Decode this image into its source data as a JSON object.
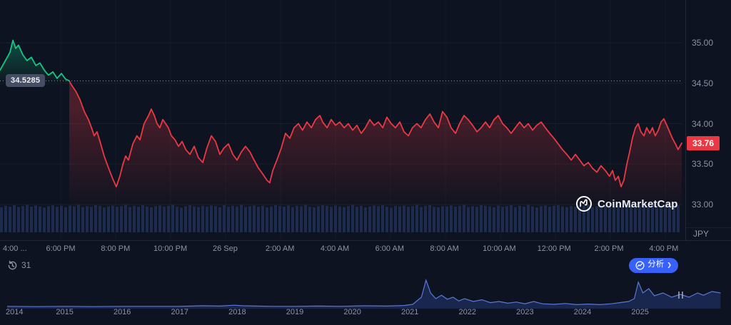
{
  "labels": {
    "open_price": "34.5285",
    "last_price": "33.76",
    "currency": "JPY"
  },
  "watermark": {
    "brand": "CoinMarketCap"
  },
  "toolbar": {
    "history_count": "31",
    "analyze_label": "分析",
    "chevron": "❯"
  },
  "colors": {
    "background": "#0d1320",
    "up": "#16c784",
    "down": "#ea3943",
    "accent_blue": "#3861fb",
    "axis_text": "#8b93a6",
    "volume_bar": "#1d2b4e",
    "timeline_line": "#5b77d4",
    "timeline_fill": "#1a2750",
    "grid": "rgba(255,255,255,0.05)"
  },
  "chart_data": [
    {
      "type": "line",
      "title": "",
      "ylabel": "JPY",
      "x_unit": "hours from chart start (~4:00 PM)",
      "x_ticks": [
        "4:00 ...",
        "6:00 PM",
        "8:00 PM",
        "10:00 PM",
        "26 Sep",
        "2:00 AM",
        "4:00 AM",
        "6:00 AM",
        "8:00 AM",
        "10:00 AM",
        "12:00 PM",
        "2:00 PM",
        "4:00 PM"
      ],
      "y_ticks": [
        "35.00",
        "34.50",
        "34.00",
        "33.50",
        "33.00"
      ],
      "y_tick_values": [
        35.0,
        34.5,
        34.0,
        33.5,
        33.0
      ],
      "ylim": [
        32.6,
        35.5
      ],
      "open_reference": 34.5285,
      "last_price": 33.76,
      "points": [
        [
          0,
          34.66
        ],
        [
          0.36,
          34.88
        ],
        [
          0.47,
          35.03
        ],
        [
          0.57,
          34.93
        ],
        [
          0.67,
          34.97
        ],
        [
          0.83,
          34.85
        ],
        [
          0.98,
          34.78
        ],
        [
          1.14,
          34.82
        ],
        [
          1.3,
          34.72
        ],
        [
          1.45,
          34.75
        ],
        [
          1.61,
          34.66
        ],
        [
          1.76,
          34.6
        ],
        [
          1.92,
          34.64
        ],
        [
          2.07,
          34.56
        ],
        [
          2.23,
          34.62
        ],
        [
          2.38,
          34.55
        ],
        [
          2.51,
          34.53
        ],
        [
          2.59,
          34.48
        ],
        [
          2.75,
          34.4
        ],
        [
          2.9,
          34.3
        ],
        [
          3.06,
          34.15
        ],
        [
          3.21,
          34.05
        ],
        [
          3.32,
          33.95
        ],
        [
          3.42,
          33.85
        ],
        [
          3.52,
          33.9
        ],
        [
          3.63,
          33.78
        ],
        [
          3.78,
          33.6
        ],
        [
          3.94,
          33.45
        ],
        [
          4.09,
          33.32
        ],
        [
          4.22,
          33.22
        ],
        [
          4.35,
          33.35
        ],
        [
          4.46,
          33.5
        ],
        [
          4.56,
          33.6
        ],
        [
          4.66,
          33.55
        ],
        [
          4.82,
          33.75
        ],
        [
          4.97,
          33.85
        ],
        [
          5.08,
          33.8
        ],
        [
          5.23,
          34.0
        ],
        [
          5.39,
          34.1
        ],
        [
          5.49,
          34.18
        ],
        [
          5.6,
          34.1
        ],
        [
          5.7,
          34.0
        ],
        [
          5.8,
          33.95
        ],
        [
          5.91,
          34.05
        ],
        [
          6.01,
          34.0
        ],
        [
          6.11,
          33.95
        ],
        [
          6.22,
          33.85
        ],
        [
          6.35,
          33.8
        ],
        [
          6.48,
          33.72
        ],
        [
          6.61,
          33.78
        ],
        [
          6.74,
          33.68
        ],
        [
          6.89,
          33.62
        ],
        [
          7.05,
          33.72
        ],
        [
          7.2,
          33.58
        ],
        [
          7.36,
          33.52
        ],
        [
          7.51,
          33.7
        ],
        [
          7.67,
          33.85
        ],
        [
          7.82,
          33.78
        ],
        [
          7.98,
          33.62
        ],
        [
          8.13,
          33.7
        ],
        [
          8.29,
          33.75
        ],
        [
          8.45,
          33.62
        ],
        [
          8.6,
          33.55
        ],
        [
          8.76,
          33.65
        ],
        [
          8.91,
          33.72
        ],
        [
          9.07,
          33.65
        ],
        [
          9.22,
          33.55
        ],
        [
          9.38,
          33.45
        ],
        [
          9.53,
          33.38
        ],
        [
          9.69,
          33.3
        ],
        [
          9.79,
          33.27
        ],
        [
          9.9,
          33.42
        ],
        [
          10.05,
          33.55
        ],
        [
          10.21,
          33.7
        ],
        [
          10.36,
          33.88
        ],
        [
          10.52,
          33.82
        ],
        [
          10.67,
          33.95
        ],
        [
          10.83,
          34.0
        ],
        [
          10.98,
          33.92
        ],
        [
          11.14,
          34.02
        ],
        [
          11.3,
          33.95
        ],
        [
          11.45,
          34.05
        ],
        [
          11.61,
          34.1
        ],
        [
          11.71,
          34.02
        ],
        [
          11.87,
          33.95
        ],
        [
          12.02,
          34.05
        ],
        [
          12.18,
          33.98
        ],
        [
          12.33,
          34.02
        ],
        [
          12.49,
          33.95
        ],
        [
          12.64,
          34.0
        ],
        [
          12.8,
          33.92
        ],
        [
          12.95,
          33.98
        ],
        [
          13.11,
          33.88
        ],
        [
          13.26,
          33.95
        ],
        [
          13.42,
          34.05
        ],
        [
          13.58,
          33.98
        ],
        [
          13.73,
          34.02
        ],
        [
          13.89,
          33.95
        ],
        [
          14.04,
          34.08
        ],
        [
          14.2,
          34.0
        ],
        [
          14.35,
          33.95
        ],
        [
          14.51,
          34.02
        ],
        [
          14.66,
          33.9
        ],
        [
          14.82,
          33.85
        ],
        [
          14.97,
          33.95
        ],
        [
          15.13,
          34.0
        ],
        [
          15.28,
          33.95
        ],
        [
          15.44,
          34.05
        ],
        [
          15.6,
          34.12
        ],
        [
          15.75,
          34.02
        ],
        [
          15.91,
          33.95
        ],
        [
          16.06,
          34.15
        ],
        [
          16.22,
          34.08
        ],
        [
          16.37,
          33.95
        ],
        [
          16.53,
          33.88
        ],
        [
          16.68,
          34.0
        ],
        [
          16.84,
          34.1
        ],
        [
          16.99,
          34.05
        ],
        [
          17.15,
          33.98
        ],
        [
          17.31,
          33.9
        ],
        [
          17.46,
          33.95
        ],
        [
          17.62,
          34.02
        ],
        [
          17.77,
          33.95
        ],
        [
          17.93,
          34.05
        ],
        [
          18.08,
          34.1
        ],
        [
          18.24,
          34.0
        ],
        [
          18.39,
          33.95
        ],
        [
          18.55,
          33.88
        ],
        [
          18.7,
          33.95
        ],
        [
          18.86,
          34.02
        ],
        [
          19.02,
          33.95
        ],
        [
          19.17,
          34.0
        ],
        [
          19.33,
          33.92
        ],
        [
          19.48,
          33.98
        ],
        [
          19.64,
          34.02
        ],
        [
          19.79,
          33.95
        ],
        [
          19.95,
          33.88
        ],
        [
          20.1,
          33.82
        ],
        [
          20.26,
          33.75
        ],
        [
          20.41,
          33.68
        ],
        [
          20.57,
          33.62
        ],
        [
          20.73,
          33.55
        ],
        [
          20.88,
          33.62
        ],
        [
          21.04,
          33.55
        ],
        [
          21.19,
          33.48
        ],
        [
          21.35,
          33.52
        ],
        [
          21.5,
          33.45
        ],
        [
          21.66,
          33.4
        ],
        [
          21.81,
          33.48
        ],
        [
          21.97,
          33.42
        ],
        [
          22.12,
          33.35
        ],
        [
          22.23,
          33.42
        ],
        [
          22.33,
          33.3
        ],
        [
          22.44,
          33.35
        ],
        [
          22.54,
          33.22
        ],
        [
          22.64,
          33.3
        ],
        [
          22.75,
          33.5
        ],
        [
          22.85,
          33.65
        ],
        [
          22.95,
          33.82
        ],
        [
          23.06,
          33.95
        ],
        [
          23.16,
          34.0
        ],
        [
          23.26,
          33.9
        ],
        [
          23.37,
          33.85
        ],
        [
          23.47,
          33.95
        ],
        [
          23.58,
          33.88
        ],
        [
          23.68,
          33.95
        ],
        [
          23.78,
          33.85
        ],
        [
          23.89,
          33.92
        ],
        [
          23.99,
          34.02
        ],
        [
          24.09,
          34.06
        ],
        [
          24.2,
          33.98
        ],
        [
          24.3,
          33.9
        ],
        [
          24.4,
          33.82
        ],
        [
          24.51,
          33.75
        ],
        [
          24.61,
          33.68
        ],
        [
          24.74,
          33.76
        ]
      ],
      "volume_norm": [
        88,
        93,
        90,
        95,
        89,
        92,
        96,
        90,
        94,
        91,
        87,
        92,
        95,
        90,
        93,
        88,
        94,
        91,
        96,
        89,
        92,
        90,
        95,
        93,
        88,
        91,
        94,
        90,
        92,
        96,
        89,
        93,
        90,
        95,
        91,
        88,
        92,
        94,
        90,
        93,
        96,
        90,
        87,
        92,
        95,
        91,
        89,
        93,
        90,
        94,
        92,
        88,
        95,
        90,
        93,
        91,
        96,
        89,
        92,
        94,
        90,
        93,
        88,
        91,
        95,
        92,
        90,
        94,
        89,
        93,
        91,
        96,
        90,
        88,
        92,
        95,
        93,
        90,
        94,
        91,
        89,
        92,
        96,
        90,
        93,
        88,
        91,
        94,
        92,
        95,
        90,
        87,
        93,
        91,
        94,
        90,
        92,
        96,
        89,
        93,
        95,
        90,
        88,
        92,
        91,
        94,
        90,
        93,
        96,
        89,
        92,
        90,
        95,
        93,
        91,
        88,
        94,
        90,
        92,
        95,
        89,
        93,
        90,
        96,
        91,
        88,
        92,
        94,
        90,
        93,
        95,
        91,
        89,
        92,
        90,
        94,
        93,
        96,
        88,
        91,
        90,
        94,
        92,
        89,
        95,
        90,
        93,
        91,
        88,
        94,
        90,
        92,
        96,
        93,
        89,
        91,
        94,
        90,
        95
      ]
    },
    {
      "type": "area",
      "title": "",
      "years": [
        "2014",
        "2015",
        "2016",
        "2017",
        "2018",
        "2019",
        "2020",
        "2021",
        "2022",
        "2023",
        "2024",
        "2025"
      ],
      "points": [
        [
          2014,
          0.03
        ],
        [
          2014.5,
          0.02
        ],
        [
          2015,
          0.03
        ],
        [
          2015.5,
          0.02
        ],
        [
          2016,
          0.03
        ],
        [
          2016.5,
          0.03
        ],
        [
          2017,
          0.03
        ],
        [
          2017.4,
          0.05
        ],
        [
          2017.7,
          0.04
        ],
        [
          2017.95,
          0.07
        ],
        [
          2018.1,
          0.05
        ],
        [
          2018.3,
          0.04
        ],
        [
          2018.6,
          0.03
        ],
        [
          2019,
          0.03
        ],
        [
          2019.4,
          0.04
        ],
        [
          2019.8,
          0.03
        ],
        [
          2020.2,
          0.05
        ],
        [
          2020.6,
          0.04
        ],
        [
          2020.9,
          0.06
        ],
        [
          2021.05,
          0.1
        ],
        [
          2021.2,
          0.35
        ],
        [
          2021.28,
          0.95
        ],
        [
          2021.36,
          0.5
        ],
        [
          2021.45,
          0.3
        ],
        [
          2021.55,
          0.42
        ],
        [
          2021.65,
          0.28
        ],
        [
          2021.75,
          0.35
        ],
        [
          2021.85,
          0.22
        ],
        [
          2021.95,
          0.3
        ],
        [
          2022.1,
          0.2
        ],
        [
          2022.25,
          0.26
        ],
        [
          2022.4,
          0.16
        ],
        [
          2022.55,
          0.2
        ],
        [
          2022.7,
          0.14
        ],
        [
          2022.85,
          0.18
        ],
        [
          2023,
          0.12
        ],
        [
          2023.15,
          0.2
        ],
        [
          2023.3,
          0.12
        ],
        [
          2023.5,
          0.1
        ],
        [
          2023.7,
          0.13
        ],
        [
          2023.9,
          0.09
        ],
        [
          2024.1,
          0.11
        ],
        [
          2024.3,
          0.09
        ],
        [
          2024.5,
          0.12
        ],
        [
          2024.65,
          0.16
        ],
        [
          2024.8,
          0.2
        ],
        [
          2024.9,
          0.3
        ],
        [
          2024.97,
          0.88
        ],
        [
          2025.05,
          0.5
        ],
        [
          2025.15,
          0.65
        ],
        [
          2025.25,
          0.4
        ],
        [
          2025.4,
          0.5
        ],
        [
          2025.55,
          0.35
        ],
        [
          2025.7,
          0.45
        ],
        [
          2025.85,
          0.35
        ],
        [
          2026,
          0.5
        ],
        [
          2026.1,
          0.42
        ],
        [
          2026.25,
          0.55
        ],
        [
          2026.4,
          0.5
        ]
      ]
    }
  ]
}
